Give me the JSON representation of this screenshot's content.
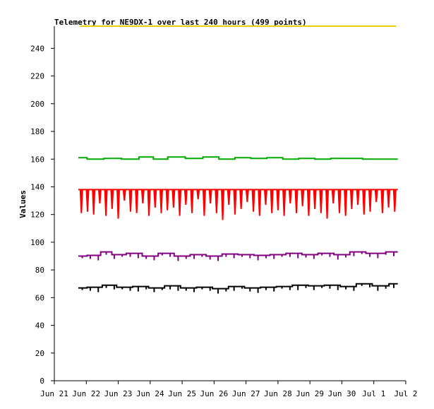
{
  "chart_data": {
    "type": "line",
    "title": "Telemetry for NE9DX-1 over last 240 hours (499 points)",
    "xlabel": "",
    "ylabel": "Values",
    "x_ticks": [
      "Jun 21",
      "Jun 22",
      "Jun 23",
      "Jun 24",
      "Jun 25",
      "Jun 26",
      "Jun 27",
      "Jun 28",
      "Jun 29",
      "Jun 30",
      "Jul 1",
      "Jul 2"
    ],
    "y_ticks": [
      0,
      20,
      40,
      60,
      80,
      100,
      120,
      140,
      160,
      180,
      200,
      220,
      240
    ],
    "xlim": [
      "2024-06-21",
      "2024-07-02"
    ],
    "ylim": [
      0,
      256
    ],
    "grid": false,
    "legend": "none",
    "series": [
      {
        "color": "#e8d000",
        "x": [
          "Jun 21.8",
          "Jul 1.7"
        ],
        "y": [
          256,
          256
        ]
      },
      {
        "color": "#00aa00",
        "x": [
          "Jun 21.75",
          "Jun 22.3",
          "Jun 22.8",
          "Jun 23.4",
          "Jun 23.9",
          "Jun 24.3",
          "Jun 24.8",
          "Jun 25.4",
          "Jun 25.9",
          "Jun 26.4",
          "Jun 26.9",
          "Jun 27.4",
          "Jun 27.9",
          "Jun 28.4",
          "Jun 28.9",
          "Jun 29.4",
          "Jun 29.9",
          "Jun 30.4",
          "Jun 30.9",
          "Jul 1.4",
          "Jul 1.75"
        ],
        "y": [
          161,
          160,
          160.5,
          160,
          161.5,
          160,
          161.5,
          160.5,
          161.5,
          160,
          161,
          160.5,
          161,
          160,
          160.5,
          160,
          160.5,
          160.5,
          160,
          160,
          160
        ]
      },
      {
        "color": "#ff0000",
        "x": [
          "Jun 21.75",
          "Jul 1.75"
        ],
        "y": [
          138,
          138
        ],
        "dips": [
          121,
          122,
          120,
          128,
          119,
          124,
          117,
          130,
          122,
          121,
          128,
          119,
          125,
          121,
          123,
          125,
          119,
          127,
          121,
          131,
          119,
          128,
          121,
          116,
          127,
          120,
          124,
          129,
          122,
          119,
          127,
          121,
          123,
          119,
          128,
          121,
          126,
          119,
          124,
          121,
          117,
          128,
          121,
          119,
          124,
          127,
          120,
          122,
          129,
          121,
          125,
          122
        ]
      },
      {
        "color": "#800080",
        "x": [
          "Jun 21.75",
          "Jun 22.3",
          "Jun 22.6",
          "Jun 23.0",
          "Jun 23.5",
          "Jun 24.0",
          "Jun 24.5",
          "Jun 25.0",
          "Jun 25.5",
          "Jun 26.0",
          "Jun 26.5",
          "Jun 27.0",
          "Jun 27.5",
          "Jun 28.0",
          "Jun 28.5",
          "Jun 29.0",
          "Jun 29.5",
          "Jun 30.0",
          "Jun 30.5",
          "Jul 1.0",
          "Jul 1.75"
        ],
        "y": [
          90,
          90.5,
          93,
          91,
          92,
          90,
          92,
          90,
          91,
          90,
          91.5,
          91,
          90.5,
          91,
          92,
          91,
          92,
          91,
          93,
          92,
          93
        ]
      },
      {
        "color": "#000000",
        "x": [
          "Jun 21.75",
          "Jun 22.3",
          "Jun 22.7",
          "Jun 23.2",
          "Jun 23.7",
          "Jun 24.2",
          "Jun 24.7",
          "Jun 25.2",
          "Jun 25.7",
          "Jun 26.2",
          "Jun 26.7",
          "Jun 27.2",
          "Jun 27.7",
          "Jun 28.2",
          "Jun 28.7",
          "Jun 29.2",
          "Jun 29.7",
          "Jun 30.2",
          "Jun 30.7",
          "Jul 1.2",
          "Jul 1.75"
        ],
        "y": [
          67,
          67.5,
          69,
          67.5,
          68,
          67,
          68.5,
          67,
          67.5,
          66.5,
          68,
          67,
          67.5,
          68,
          69,
          68.5,
          69,
          68,
          70,
          68.5,
          70
        ]
      }
    ]
  }
}
